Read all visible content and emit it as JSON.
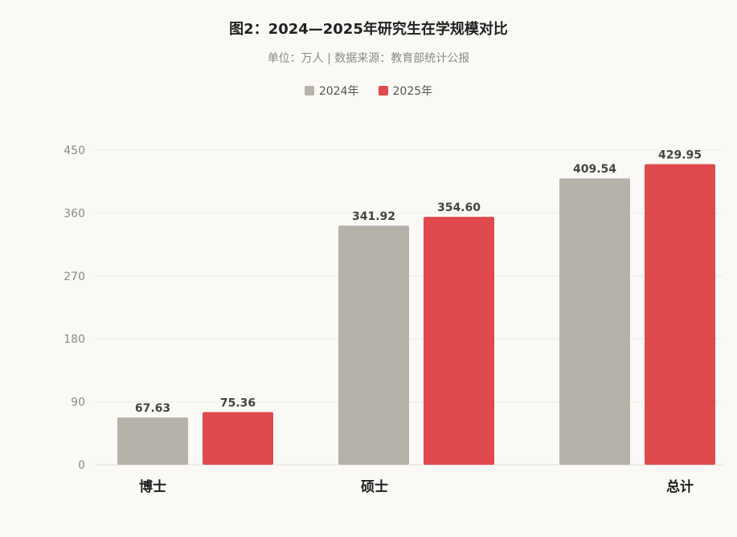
{
  "chart_data": {
    "type": "bar",
    "title": "图2：2024—2025年研究生在学规模对比",
    "subtitle": "单位：万人 | 数据来源：教育部统计公报",
    "categories": [
      "博士",
      "硕士",
      "总计"
    ],
    "series": [
      {
        "name": "2024年",
        "color": "#b5b2aa",
        "values": [
          67.63,
          341.92,
          409.54
        ],
        "labels": [
          "67.63",
          "341.92",
          "409.54"
        ]
      },
      {
        "name": "2025年",
        "color": "#e04a4c",
        "values": [
          75.36,
          354.6,
          429.95
        ],
        "labels": [
          "75.36",
          "354.60",
          "429.95"
        ]
      }
    ],
    "ylim": [
      0,
      450
    ],
    "yticks": [
      0,
      90,
      180,
      270,
      360,
      450
    ],
    "grid": true,
    "legend_position": "top-center"
  }
}
